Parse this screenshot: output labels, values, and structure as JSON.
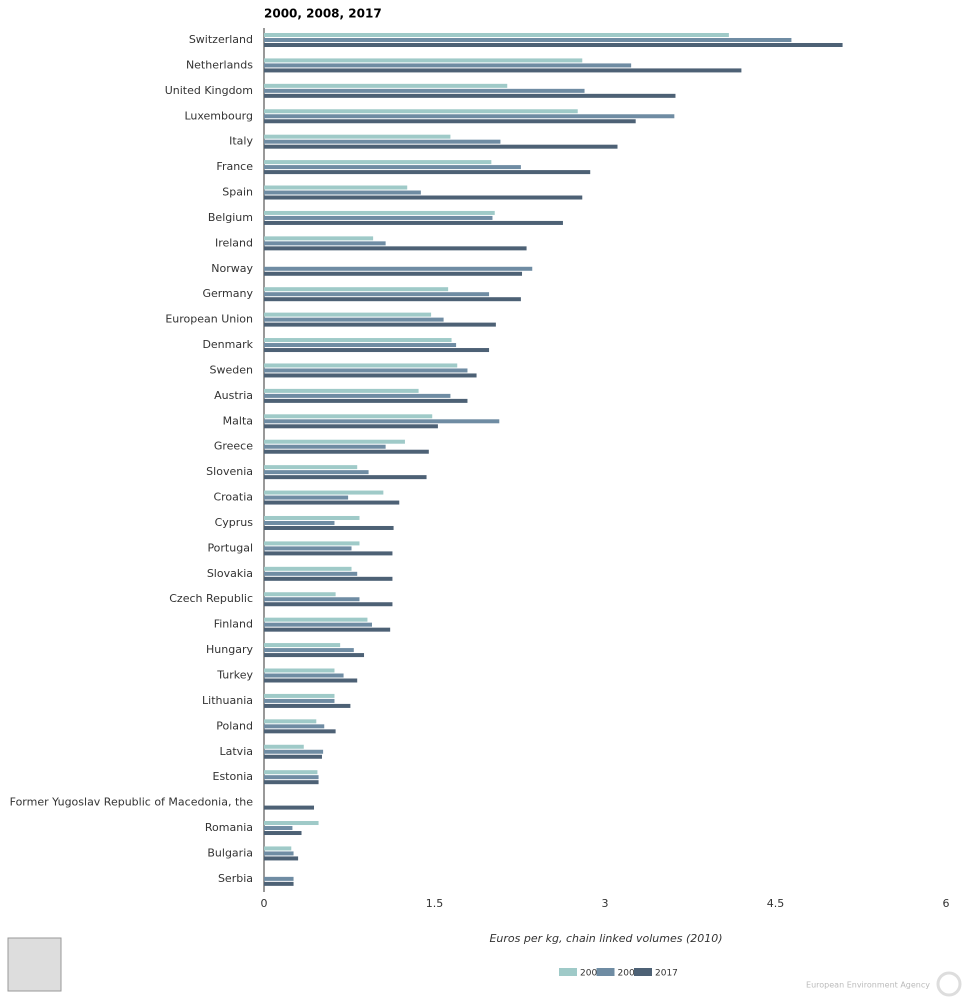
{
  "chart_data": {
    "type": "hbar",
    "title": "2000, 2008, 2017",
    "x_label": "Euros per kg, chain linked volumes (2010)",
    "footer": "European Environment Agency",
    "categories": [
      "Switzerland",
      "Netherlands",
      "United Kingdom",
      "Luxembourg",
      "Italy",
      "France",
      "Spain",
      "Belgium",
      "Ireland",
      "Norway",
      "Germany",
      "European Union",
      "Denmark",
      "Sweden",
      "Austria",
      "Malta",
      "Greece",
      "Slovenia",
      "Croatia",
      "Cyprus",
      "Portugal",
      "Slovakia",
      "Czech Republic",
      "Finland",
      "Hungary",
      "Turkey",
      "Lithuania",
      "Poland",
      "Latvia",
      "Estonia",
      "Former Yugoslav Republic of Macedonia, the",
      "Romania",
      "Bulgaria",
      "Serbia"
    ],
    "series": [
      {
        "name": "2000",
        "color": "#9fcac8",
        "values": [
          4.09,
          2.8,
          2.14,
          2.76,
          1.64,
          2.0,
          1.26,
          2.03,
          0.96,
          null,
          1.62,
          1.47,
          1.65,
          1.7,
          1.36,
          1.48,
          1.24,
          0.82,
          1.05,
          0.84,
          0.84,
          0.77,
          0.63,
          0.91,
          0.67,
          0.62,
          0.62,
          0.46,
          0.35,
          0.47,
          null,
          0.48,
          0.24,
          null
        ]
      },
      {
        "name": "2008",
        "color": "#6f8ca3",
        "values": [
          4.64,
          3.23,
          2.82,
          3.61,
          2.08,
          2.26,
          1.38,
          2.01,
          1.07,
          2.36,
          1.98,
          1.58,
          1.69,
          1.79,
          1.64,
          2.07,
          1.07,
          0.92,
          0.74,
          0.62,
          0.77,
          0.82,
          0.84,
          0.95,
          0.79,
          0.7,
          0.62,
          0.53,
          0.52,
          0.48,
          null,
          0.25,
          0.26,
          0.26
        ]
      },
      {
        "name": "2017",
        "color": "#4d6175",
        "values": [
          5.09,
          4.2,
          3.62,
          3.27,
          3.11,
          2.87,
          2.8,
          2.63,
          2.31,
          2.27,
          2.26,
          2.04,
          1.98,
          1.87,
          1.79,
          1.53,
          1.45,
          1.43,
          1.19,
          1.14,
          1.13,
          1.13,
          1.13,
          1.11,
          0.88,
          0.82,
          0.76,
          0.63,
          0.51,
          0.48,
          0.44,
          0.33,
          0.3,
          0.26
        ]
      }
    ],
    "xlim": [
      0,
      6
    ],
    "xticks": [
      0,
      1.5,
      3,
      4.5,
      6
    ],
    "grid": false
  }
}
